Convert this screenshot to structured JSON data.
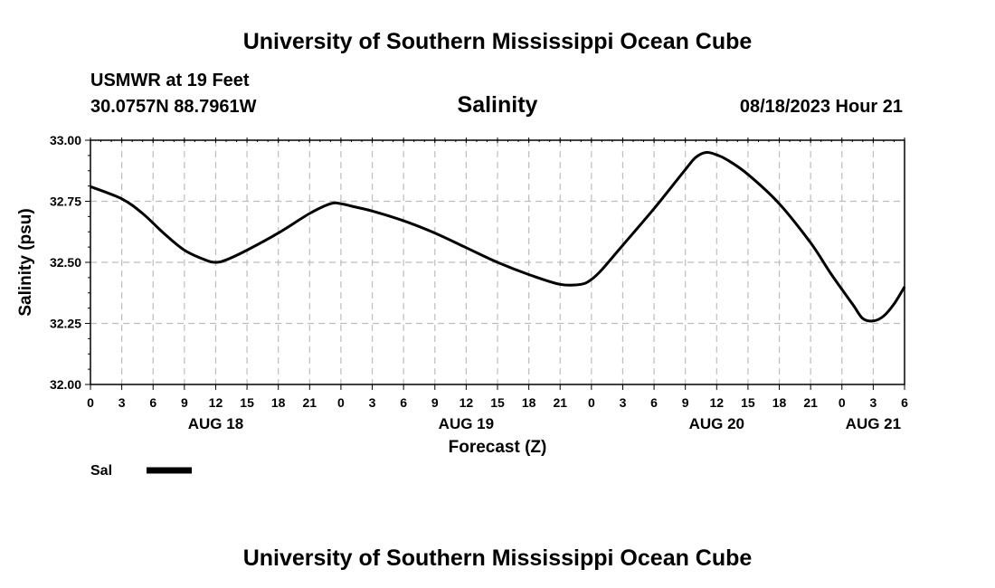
{
  "header": {
    "top_title": "University of Southern Mississippi Ocean Cube",
    "station": "USMWR at 19 Feet",
    "location": "30.0757N  88.7961W",
    "datetime": "08/18/2023 Hour 21",
    "bottom_title": "University of Southern Mississippi Ocean Cube"
  },
  "chart_data": {
    "type": "line",
    "title": "Salinity",
    "xlabel": "Forecast (Z)",
    "ylabel": "Salinity (psu)",
    "ylim": [
      32.0,
      33.0
    ],
    "yticks": [
      "32.00",
      "32.25",
      "32.50",
      "32.75",
      "33.00"
    ],
    "xlim": [
      0,
      78
    ],
    "x_unit": "hours from AUG 18 00Z",
    "xtick_labels": [
      "0",
      "3",
      "6",
      "9",
      "12",
      "15",
      "18",
      "21",
      "0",
      "3",
      "6",
      "9",
      "12",
      "15",
      "18",
      "21",
      "0",
      "3",
      "6",
      "9",
      "12",
      "15",
      "18",
      "21",
      "0",
      "3",
      "6"
    ],
    "day_labels": [
      {
        "label": "AUG 18",
        "x": 12
      },
      {
        "label": "AUG 19",
        "x": 36
      },
      {
        "label": "AUG 20",
        "x": 60
      },
      {
        "label": "AUG 21",
        "x": 75
      }
    ],
    "grid": true,
    "legend": "bottom-left",
    "series": [
      {
        "name": "Sal",
        "color": "#000000",
        "x": [
          0,
          3,
          5,
          7,
          9,
          11,
          12,
          13,
          15,
          18,
          21,
          23,
          24,
          25,
          27,
          30,
          33,
          36,
          39,
          42,
          45,
          47,
          48,
          49,
          51,
          54,
          57,
          58,
          59,
          60,
          61,
          63,
          66,
          69,
          71,
          73,
          74,
          75,
          76,
          77,
          78
        ],
        "values": [
          32.81,
          32.76,
          32.7,
          32.62,
          32.55,
          32.51,
          32.5,
          32.51,
          32.55,
          32.62,
          32.7,
          32.74,
          32.74,
          32.73,
          32.71,
          32.67,
          32.62,
          32.56,
          32.5,
          32.45,
          32.41,
          32.41,
          32.43,
          32.47,
          32.57,
          32.72,
          32.88,
          32.93,
          32.95,
          32.94,
          32.92,
          32.86,
          32.74,
          32.58,
          32.45,
          32.33,
          32.27,
          32.26,
          32.28,
          32.33,
          32.4
        ]
      }
    ]
  }
}
